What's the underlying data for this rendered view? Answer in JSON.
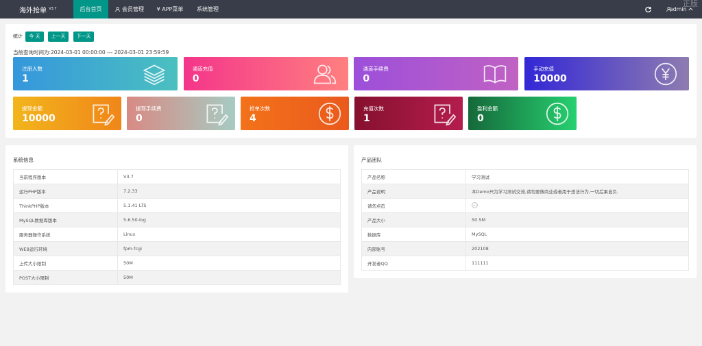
{
  "nav": {
    "logo": "海外抢单",
    "version": "V3.7",
    "menu": [
      "后台首页",
      "会员管理",
      "¥ APP菜单",
      "系统管理"
    ],
    "user": "admin",
    "watermark": "正版"
  },
  "stats": {
    "label": "统计",
    "buttons": [
      "今 天",
      "上一天",
      "下一天"
    ],
    "query_time": "当前查询时间为:2024-03-01 00:00:00 --- 2024-03-01 23:59:59",
    "tiles": [
      {
        "label": "注册人数",
        "value": 1
      },
      {
        "label": "通道充值",
        "value": 0
      },
      {
        "label": "通道手续费",
        "value": 0
      },
      {
        "label": "手动充值",
        "value": 10000
      },
      {
        "label": "提现金额",
        "value": 10000
      },
      {
        "label": "提现手续费",
        "value": 0
      },
      {
        "label": "抢单次数",
        "value": 4
      },
      {
        "label": "充值次数",
        "value": 1
      },
      {
        "label": "盈利金额",
        "value": 0
      }
    ]
  },
  "system_info": {
    "title": "系统信息",
    "rows": [
      [
        "当前程序版本",
        "V3.7"
      ],
      [
        "运行PHP版本",
        "7.2.33"
      ],
      [
        "ThinkPHP版本",
        "5.1.41 LTS"
      ],
      [
        "MySQL数据库版本",
        "5.6.50-log"
      ],
      [
        "服务器操作系统",
        "Linux"
      ],
      [
        "WEB运行环境",
        "fpm-fcgi"
      ],
      [
        "上传大小限制",
        "50M"
      ],
      [
        "POST大小限制",
        "50M"
      ]
    ]
  },
  "product_team": {
    "title": "产品团队",
    "rows": [
      [
        "产品名称",
        "学习测试"
      ],
      [
        "产品说明",
        "本Demo只为学习测试交流,请勿要做商业或者用于违法行为,一切后果自负."
      ],
      [
        "请勿点击"
      ],
      [
        "产品大小",
        "50.5M"
      ],
      [
        "数据库",
        "MySQL"
      ],
      [
        "内部账号",
        "202108"
      ],
      [
        "开发者QQ",
        "111111"
      ]
    ]
  }
}
